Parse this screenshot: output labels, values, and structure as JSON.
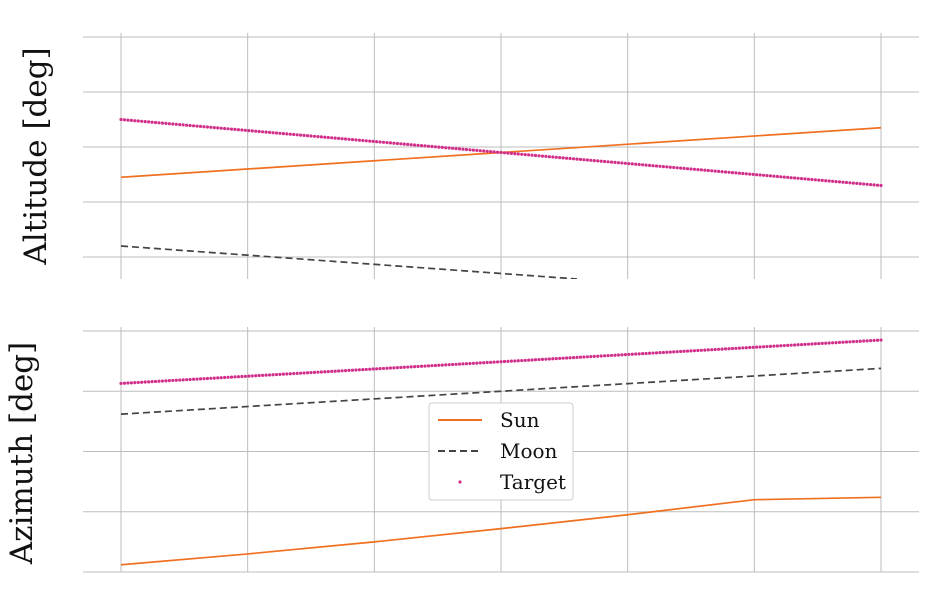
{
  "chart_data": [
    {
      "type": "line",
      "ylabel": "Altitude [deg]",
      "xlim": [
        0,
        6
      ],
      "ylim": [
        0,
        4
      ],
      "grid": true,
      "x_gridlines": [
        0,
        1,
        2,
        3,
        4,
        5,
        6
      ],
      "y_gridlines": [
        0.4,
        1.4,
        2.4,
        3.4,
        4.4
      ],
      "series": [
        {
          "name": "Sun",
          "style": "solid",
          "color": "#f07020",
          "x": [
            0,
            6
          ],
          "y": [
            1.85,
            2.75
          ]
        },
        {
          "name": "Moon",
          "style": "dashed",
          "color": "#444444",
          "x": [
            0,
            3.6
          ],
          "y": [
            0.6,
            0.0
          ]
        },
        {
          "name": "Target",
          "style": "points",
          "color": "#d0308a",
          "x": [
            0,
            6
          ],
          "y": [
            2.9,
            1.7
          ]
        }
      ]
    },
    {
      "type": "line",
      "ylabel": "Azimuth [deg]",
      "xlim": [
        0,
        6
      ],
      "ylim": [
        0,
        4
      ],
      "grid": true,
      "x_gridlines": [
        0,
        1,
        2,
        3,
        4,
        5,
        6
      ],
      "y_gridlines": [
        0,
        1,
        2,
        3,
        4
      ],
      "series": [
        {
          "name": "Sun",
          "style": "solid",
          "color": "#f07020",
          "x": [
            0,
            1,
            2,
            3,
            4,
            5,
            6
          ],
          "y": [
            0.12,
            0.3,
            0.5,
            0.72,
            0.95,
            1.2,
            1.24
          ]
        },
        {
          "name": "Moon",
          "style": "dashed",
          "color": "#444444",
          "x": [
            0,
            6
          ],
          "y": [
            2.62,
            3.38
          ]
        },
        {
          "name": "Target",
          "style": "points",
          "color": "#d0308a",
          "x": [
            0,
            6
          ],
          "y": [
            3.13,
            3.85
          ]
        }
      ],
      "legend": {
        "placement": "center",
        "entries": [
          "Sun",
          "Moon",
          "Target"
        ]
      }
    }
  ]
}
